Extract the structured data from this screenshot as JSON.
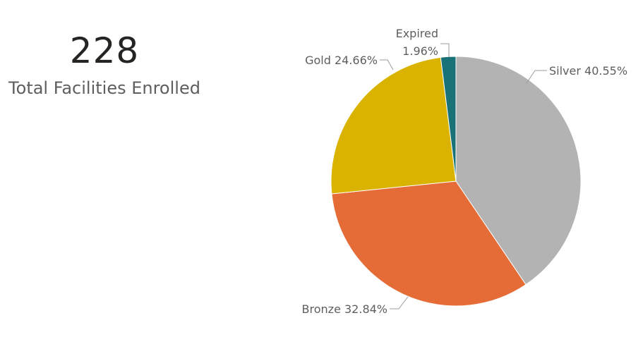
{
  "kpi": {
    "value": "228",
    "label": "Total Facilities Enrolled"
  },
  "chart_data": {
    "type": "pie",
    "title": "",
    "slices": [
      {
        "label": "Silver",
        "percent": 40.55,
        "display": "40.55%",
        "color": "#B3B3B3"
      },
      {
        "label": "Bronze",
        "percent": 32.84,
        "display": "32.84%",
        "color": "#E66C37"
      },
      {
        "label": "Gold",
        "percent": 24.66,
        "display": "24.66%",
        "color": "#D9B300"
      },
      {
        "label": "Expired",
        "percent": 1.96,
        "display": "1.96%",
        "color": "#197278"
      }
    ],
    "legend": "none",
    "label_style": "outside-with-leader-lines"
  }
}
